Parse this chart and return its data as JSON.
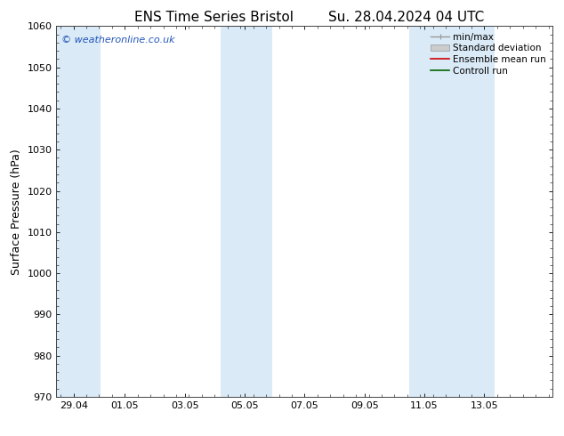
{
  "title_left": "ENS Time Series Bristol",
  "title_right": "Su. 28.04.2024 04 UTC",
  "ylabel": "Surface Pressure (hPa)",
  "ylim": [
    970,
    1060
  ],
  "yticks": [
    970,
    980,
    990,
    1000,
    1010,
    1020,
    1030,
    1040,
    1050,
    1060
  ],
  "xlim_start": 0.0,
  "xlim_end": 14.5,
  "xtick_labels": [
    "29.04",
    "01.05",
    "03.05",
    "05.05",
    "07.05",
    "09.05",
    "11.05",
    "13.05"
  ],
  "xtick_positions": [
    0.5,
    2.0,
    3.75,
    5.5,
    7.25,
    9.0,
    10.75,
    12.5
  ],
  "shaded_bands": [
    {
      "x_start": 0.0,
      "x_end": 1.3
    },
    {
      "x_start": 4.8,
      "x_end": 6.3
    },
    {
      "x_start": 10.3,
      "x_end": 12.8
    }
  ],
  "shaded_color": "#daeaf7",
  "watermark": "© weatheronline.co.uk",
  "watermark_color": "#2255bb",
  "background_color": "#ffffff",
  "legend_labels": [
    "min/max",
    "Standard deviation",
    "Ensemble mean run",
    "Controll run"
  ],
  "legend_colors_handle": [
    "#999999",
    "#cccccc",
    "#cc0000",
    "#006600"
  ],
  "title_fontsize": 11,
  "label_fontsize": 9,
  "tick_fontsize": 8,
  "watermark_fontsize": 8,
  "legend_fontsize": 7.5
}
